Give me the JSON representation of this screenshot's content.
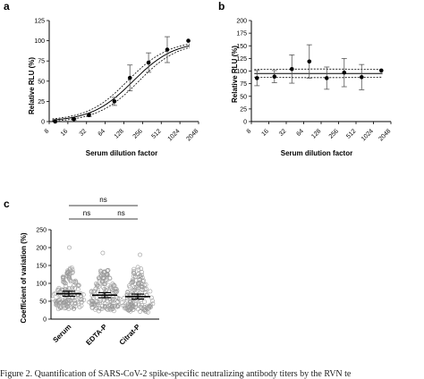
{
  "caption": "Figure 2. Quantification of SARS-CoV-2 spike-specific neutralizing antibody titers by the RVN te",
  "chart_data": [
    {
      "panel": "a",
      "type": "scatter",
      "xlabel": "Serum dilution factor",
      "ylabel": "Relative RLU (%)",
      "x_scale": "log2",
      "xlim": [
        8,
        2048
      ],
      "ylim": [
        0,
        125
      ],
      "xticks": [
        "8",
        "16",
        "32",
        "64",
        "128",
        "256",
        "512",
        "1024",
        "2048"
      ],
      "yticks": [
        "0",
        "25",
        "50",
        "75",
        "100",
        "125"
      ],
      "points": [
        {
          "x": 10,
          "y": 0,
          "err": 0
        },
        {
          "x": 20,
          "y": 3,
          "err": 1
        },
        {
          "x": 35,
          "y": 8,
          "err": 2
        },
        {
          "x": 90,
          "y": 25,
          "err": 5
        },
        {
          "x": 160,
          "y": 54,
          "err": 16
        },
        {
          "x": 320,
          "y": 73,
          "err": 12
        },
        {
          "x": 640,
          "y": 89,
          "err": 16
        },
        {
          "x": 1400,
          "y": 100,
          "err": 0
        }
      ],
      "fit": {
        "model": "sigmoidal",
        "top": 100,
        "bottom": 0,
        "ec50": 180,
        "hill": 1.3,
        "ci_band": 6
      }
    },
    {
      "panel": "b",
      "type": "scatter",
      "xlabel": "Serum dilution factor",
      "ylabel": "Relative RLU (%)",
      "x_scale": "log2",
      "xlim": [
        8,
        2048
      ],
      "ylim": [
        0,
        200
      ],
      "xticks": [
        "8",
        "16",
        "32",
        "64",
        "128",
        "256",
        "512",
        "1024",
        "2048"
      ],
      "yticks": [
        "0",
        "25",
        "50",
        "75",
        "100",
        "125",
        "150",
        "175",
        "200"
      ],
      "points": [
        {
          "x": 10,
          "y": 86,
          "err": 15
        },
        {
          "x": 20,
          "y": 89,
          "err": 12
        },
        {
          "x": 40,
          "y": 104,
          "err": 28
        },
        {
          "x": 80,
          "y": 119,
          "err": 33
        },
        {
          "x": 160,
          "y": 86,
          "err": 22
        },
        {
          "x": 320,
          "y": 97,
          "err": 28
        },
        {
          "x": 640,
          "y": 88,
          "err": 25
        },
        {
          "x": 1400,
          "y": 101,
          "err": 0
        }
      ],
      "fit": {
        "model": "flat",
        "mean": 95,
        "ci_low": [
          88,
          86,
          88
        ],
        "ci_high": [
          103,
          105,
          103
        ]
      }
    },
    {
      "panel": "c",
      "type": "scatter",
      "ylabel": "Coefficient of variation (%)",
      "ylim": [
        0,
        250
      ],
      "yticks": [
        "0",
        "50",
        "100",
        "150",
        "200",
        "250"
      ],
      "categories": [
        "Serum",
        "EDTA-P",
        "Citrat-P"
      ],
      "means": [
        71,
        67,
        63
      ],
      "ci": [
        [
          64,
          78
        ],
        [
          60,
          74
        ],
        [
          56,
          70
        ]
      ],
      "max_values": [
        200,
        185,
        180
      ],
      "n_points_per_group": 150,
      "comparisons": [
        {
          "pair": [
            "Serum",
            "EDTA-P"
          ],
          "label": "ns"
        },
        {
          "pair": [
            "EDTA-P",
            "Citrat-P"
          ],
          "label": "ns"
        },
        {
          "pair": [
            "Serum",
            "Citrat-P"
          ],
          "label": "ns"
        }
      ]
    }
  ]
}
